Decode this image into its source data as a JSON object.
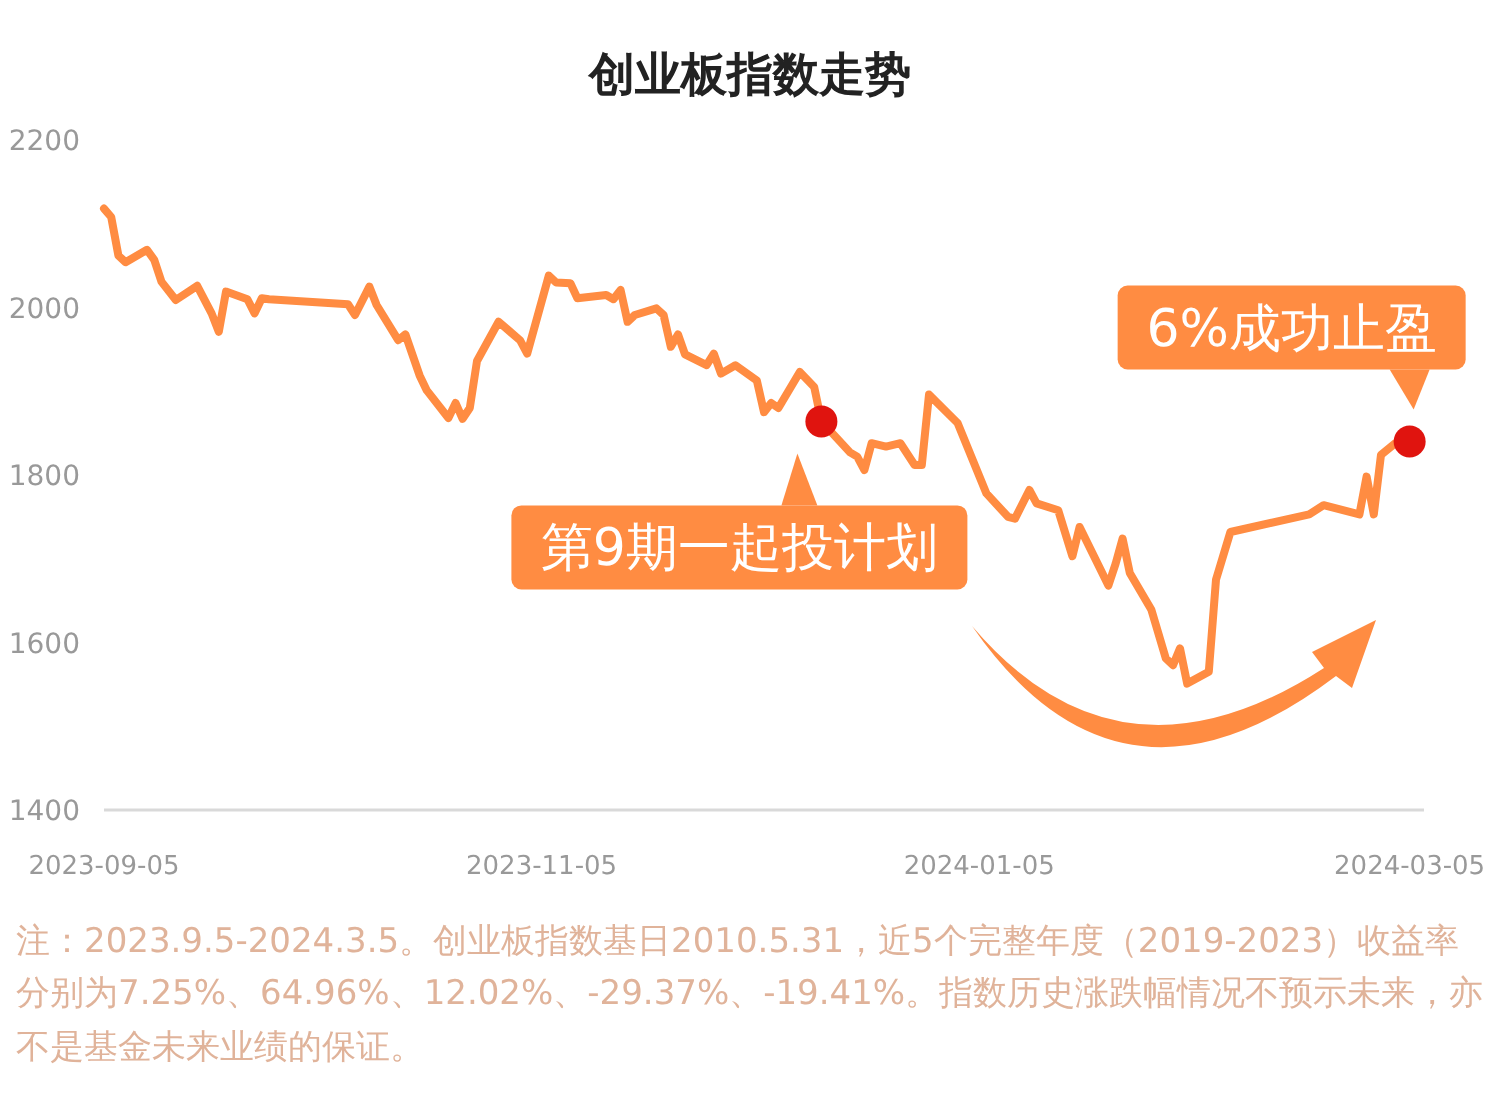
{
  "chart_data": {
    "type": "line",
    "title": "创业板指数走势",
    "x": [
      "2023-09-05",
      "2023-09-06",
      "2023-09-07",
      "2023-09-08",
      "2023-09-11",
      "2023-09-12",
      "2023-09-13",
      "2023-09-15",
      "2023-09-18",
      "2023-09-20",
      "2023-09-21",
      "2023-09-22",
      "2023-09-25",
      "2023-09-26",
      "2023-09-27",
      "2023-09-28",
      "2023-10-09",
      "2023-10-10",
      "2023-10-12",
      "2023-10-13",
      "2023-10-16",
      "2023-10-17",
      "2023-10-19",
      "2023-10-20",
      "2023-10-23",
      "2023-10-24",
      "2023-10-25",
      "2023-10-26",
      "2023-10-27",
      "2023-10-30",
      "2023-11-02",
      "2023-11-03",
      "2023-11-06",
      "2023-11-07",
      "2023-11-09",
      "2023-11-10",
      "2023-11-14",
      "2023-11-15",
      "2023-11-16",
      "2023-11-17",
      "2023-11-18",
      "2023-11-21",
      "2023-11-22",
      "2023-11-23",
      "2023-11-24",
      "2023-11-25",
      "2023-11-28",
      "2023-11-29",
      "2023-11-30",
      "2023-12-02",
      "2023-12-05",
      "2023-12-06",
      "2023-12-07",
      "2023-12-08",
      "2023-12-11",
      "2023-12-13",
      "2023-12-14",
      "2023-12-18",
      "2023-12-19",
      "2023-12-20",
      "2023-12-21",
      "2023-12-23",
      "2023-12-25",
      "2023-12-27",
      "2023-12-28",
      "2023-12-29",
      "2024-01-02",
      "2024-01-06",
      "2024-01-09",
      "2024-01-10",
      "2024-01-12",
      "2024-01-13",
      "2024-01-16",
      "2024-01-18",
      "2024-01-19",
      "2024-01-23",
      "2024-01-24",
      "2024-01-25",
      "2024-01-26",
      "2024-01-29",
      "2024-01-31",
      "2024-02-01",
      "2024-02-02",
      "2024-02-03",
      "2024-02-06",
      "2024-02-07",
      "2024-02-09",
      "2024-02-20",
      "2024-02-22",
      "2024-02-27",
      "2024-02-28",
      "2024-02-29",
      "2024-03-01",
      "2024-03-03",
      "2024-03-05"
    ],
    "series": [
      {
        "color": "#ff8c42",
        "values": [
          2118,
          2108,
          2062,
          2054,
          2069,
          2057,
          2031,
          2009,
          2026,
          1993,
          1971,
          2019,
          2010,
          1993,
          2011,
          2010,
          2004,
          1991,
          2025,
          2003,
          1961,
          1968,
          1919,
          1901,
          1868,
          1886,
          1867,
          1880,
          1936,
          1983,
          1961,
          1945,
          2038,
          2030,
          2029,
          2011,
          2015,
          2010,
          2021,
          1983,
          1991,
          1999,
          1991,
          1953,
          1968,
          1944,
          1931,
          1945,
          1921,
          1931,
          1913,
          1875,
          1886,
          1880,
          1923,
          1905,
          1864,
          1827,
          1822,
          1806,
          1838,
          1834,
          1838,
          1812,
          1812,
          1896,
          1862,
          1778,
          1750,
          1748,
          1782,
          1766,
          1758,
          1703,
          1738,
          1668,
          1694,
          1724,
          1683,
          1639,
          1581,
          1573,
          1593,
          1551,
          1565,
          1675,
          1732,
          1753,
          1764,
          1753,
          1798,
          1753,
          1824,
          1838,
          1840
        ]
      }
    ],
    "xlim": [
      "2023-09-05",
      "2024-03-07"
    ],
    "xticks": [
      "2023-09-05",
      "2023-11-05",
      "2024-01-05",
      "2024-03-05"
    ],
    "ylim": [
      1400,
      2200
    ],
    "yticks": [
      1400,
      1600,
      1800,
      2000,
      2200
    ],
    "marker": "none",
    "line_style": "solid",
    "annotations": [
      {
        "text": "第9期一起投计划",
        "x": "2023-12-14",
        "y": 1864
      },
      {
        "text": "6%成功止盈",
        "x": "2024-03-05",
        "y": 1840
      },
      "注：2023.9.5-2024.3.5。创业板指数基日2010.5.31，近5个完整年度（2019-2023）收益率分别为7.25%、64.96%、12.02%、-29.37%、-19.41%。指数历史涨跌幅情况不预示未来，亦不是基金未来业绩的保证。"
    ]
  }
}
